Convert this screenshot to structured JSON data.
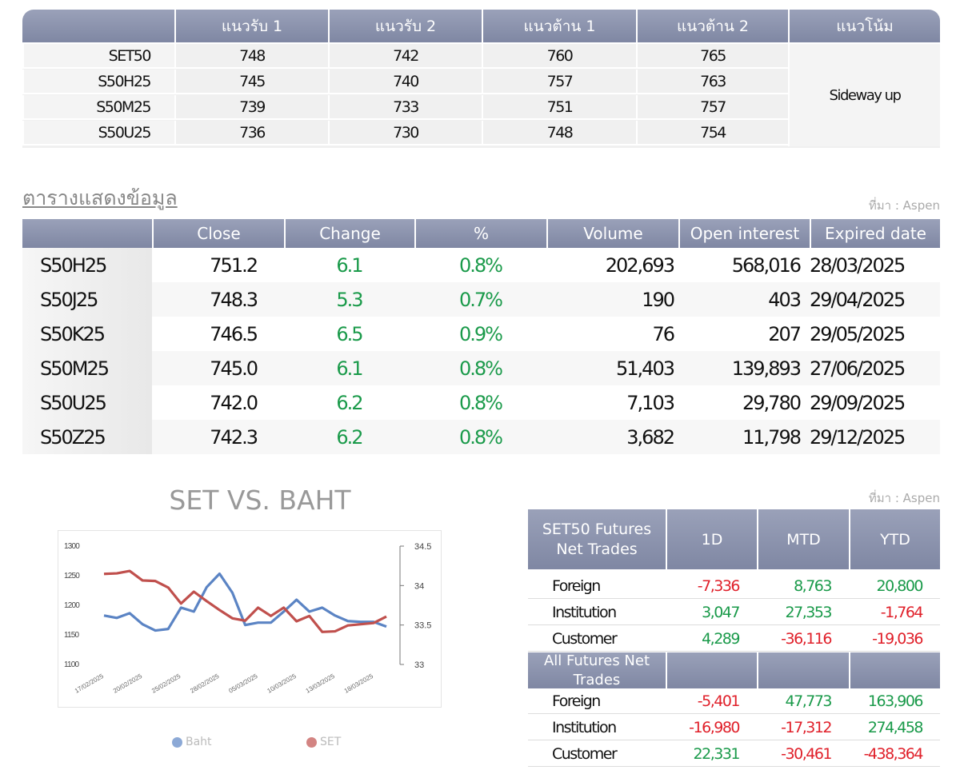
{
  "support_table": {
    "headers": [
      "แนวรับ 1",
      "แนวรับ 2",
      "แนวต้าน 1",
      "แนวต้าน 2",
      "แนวโน้ม"
    ],
    "rows": [
      [
        "SET50",
        "748",
        "742",
        "760",
        "765"
      ],
      [
        "S50H25",
        "745",
        "740",
        "757",
        "763"
      ],
      [
        "S50M25",
        "739",
        "733",
        "751",
        "757"
      ],
      [
        "S50U25",
        "736",
        "730",
        "748",
        "754"
      ]
    ],
    "trend": "Sideway up"
  },
  "section_title": "ตารางแสดงข้อมูล",
  "source": "ที่มา : Aspen",
  "futures_table": {
    "headers": [
      "Close",
      "Change",
      "%",
      "Volume",
      "Open interest",
      "Expired date"
    ],
    "rows": [
      [
        "S50H25",
        "751.2",
        "6.1",
        "0.8%",
        "202,693",
        "568,016",
        "28/03/2025"
      ],
      [
        "S50J25",
        "748.3",
        "5.3",
        "0.7%",
        "190",
        "403",
        "29/04/2025"
      ],
      [
        "S50K25",
        "746.5",
        "6.5",
        "0.9%",
        "76",
        "207",
        "29/05/2025"
      ],
      [
        "S50M25",
        "745.0",
        "6.1",
        "0.8%",
        "51,403",
        "139,893",
        "27/06/2025"
      ],
      [
        "S50U25",
        "742.0",
        "6.2",
        "0.8%",
        "7,103",
        "29,780",
        "29/09/2025"
      ],
      [
        "S50Z25",
        "742.3",
        "6.2",
        "0.8%",
        "3,682",
        "11,798",
        "29/12/2025"
      ]
    ]
  },
  "chart_data": {
    "type": "line",
    "title": "SET VS. BAHT",
    "categories": [
      "17/02/2025",
      null,
      null,
      "20/02/2025",
      null,
      null,
      "25/02/2025",
      null,
      null,
      "28/02/2025",
      null,
      null,
      "05/03/2025",
      null,
      null,
      "10/03/2025",
      null,
      null,
      "13/03/2025",
      null,
      null,
      "18/03/2025",
      null
    ],
    "series": [
      {
        "name": "Baht",
        "color": "#5b84c4",
        "axis": "y2",
        "values": [
          33.62,
          33.59,
          33.65,
          33.51,
          33.43,
          33.45,
          33.72,
          33.67,
          33.98,
          34.15,
          33.91,
          33.5,
          33.53,
          33.53,
          33.67,
          33.82,
          33.67,
          33.72,
          33.62,
          33.55,
          33.54,
          33.54,
          33.48
        ]
      },
      {
        "name": "SET",
        "color": "#c0504d",
        "values": [
          1253,
          1254,
          1258,
          1242,
          1241,
          1230,
          1203,
          1223,
          1207,
          1192,
          1178,
          1174,
          1196,
          1182,
          1196,
          1173,
          1182,
          1155,
          1156,
          1166,
          1168,
          1170,
          1181
        ]
      }
    ],
    "ylim": [
      1100,
      1300
    ],
    "yticks": [
      1100,
      1150,
      1200,
      1250,
      1300
    ],
    "y2lim": [
      33,
      34.5
    ],
    "y2ticks": [
      33,
      33.5,
      34,
      34.5
    ]
  },
  "net_source": "ที่มา : Aspen",
  "net_trades": {
    "headers": [
      "1D",
      "MTD",
      "YTD"
    ],
    "sections": [
      {
        "title": "SET50 Futures Net Trades",
        "rows": [
          [
            "Foreign",
            "-7,336",
            "8,763",
            "20,800"
          ],
          [
            "Institution",
            "3,047",
            "27,353",
            "-1,764"
          ],
          [
            "Customer",
            "4,289",
            "-36,116",
            "-19,036"
          ]
        ]
      },
      {
        "title": "All Futures Net Trades",
        "rows": [
          [
            "Foreign",
            "-5,401",
            "47,773",
            "163,906"
          ],
          [
            "Institution",
            "-16,980",
            "-17,312",
            "274,458"
          ],
          [
            "Customer",
            "22,331",
            "-30,461",
            "-438,364"
          ]
        ]
      }
    ]
  }
}
